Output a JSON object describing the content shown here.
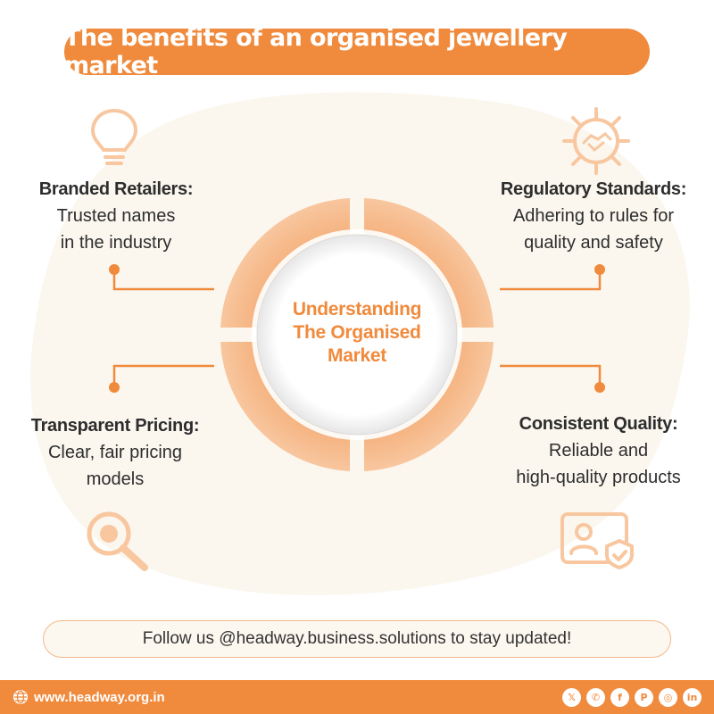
{
  "title": "The benefits of an organised jewellery market",
  "center": {
    "line1": "Understanding",
    "line2": "The Organised",
    "line3": "Market"
  },
  "benefits": {
    "top_left": {
      "head": "Branded Retailers:",
      "line1": "Trusted names",
      "line2": "in the industry",
      "icon": "lightbulb-icon"
    },
    "top_right": {
      "head": "Regulatory Standards:",
      "line1": "Adhering to rules for",
      "line2": "quality and safety",
      "icon": "handshake-gear-icon"
    },
    "bottom_left": {
      "head": "Transparent Pricing:",
      "line1": "Clear, fair pricing",
      "line2": "models",
      "icon": "magnifier-icon"
    },
    "bottom_right": {
      "head": "Consistent Quality:",
      "line1": "Reliable and",
      "line2": "high-quality products",
      "icon": "id-card-shield-icon"
    }
  },
  "follow_text": "Follow us @headway.business.solutions to stay updated!",
  "footer": {
    "website": "www.headway.org.in",
    "socials": [
      "x-icon",
      "whatsapp-icon",
      "facebook-icon",
      "pinterest-icon",
      "instagram-icon",
      "linkedin-icon"
    ]
  },
  "colors": {
    "accent": "#f08a3c",
    "accent_light": "#f8c7a0",
    "background_blob": "#fbf7ef",
    "text": "#2d2d2d"
  }
}
